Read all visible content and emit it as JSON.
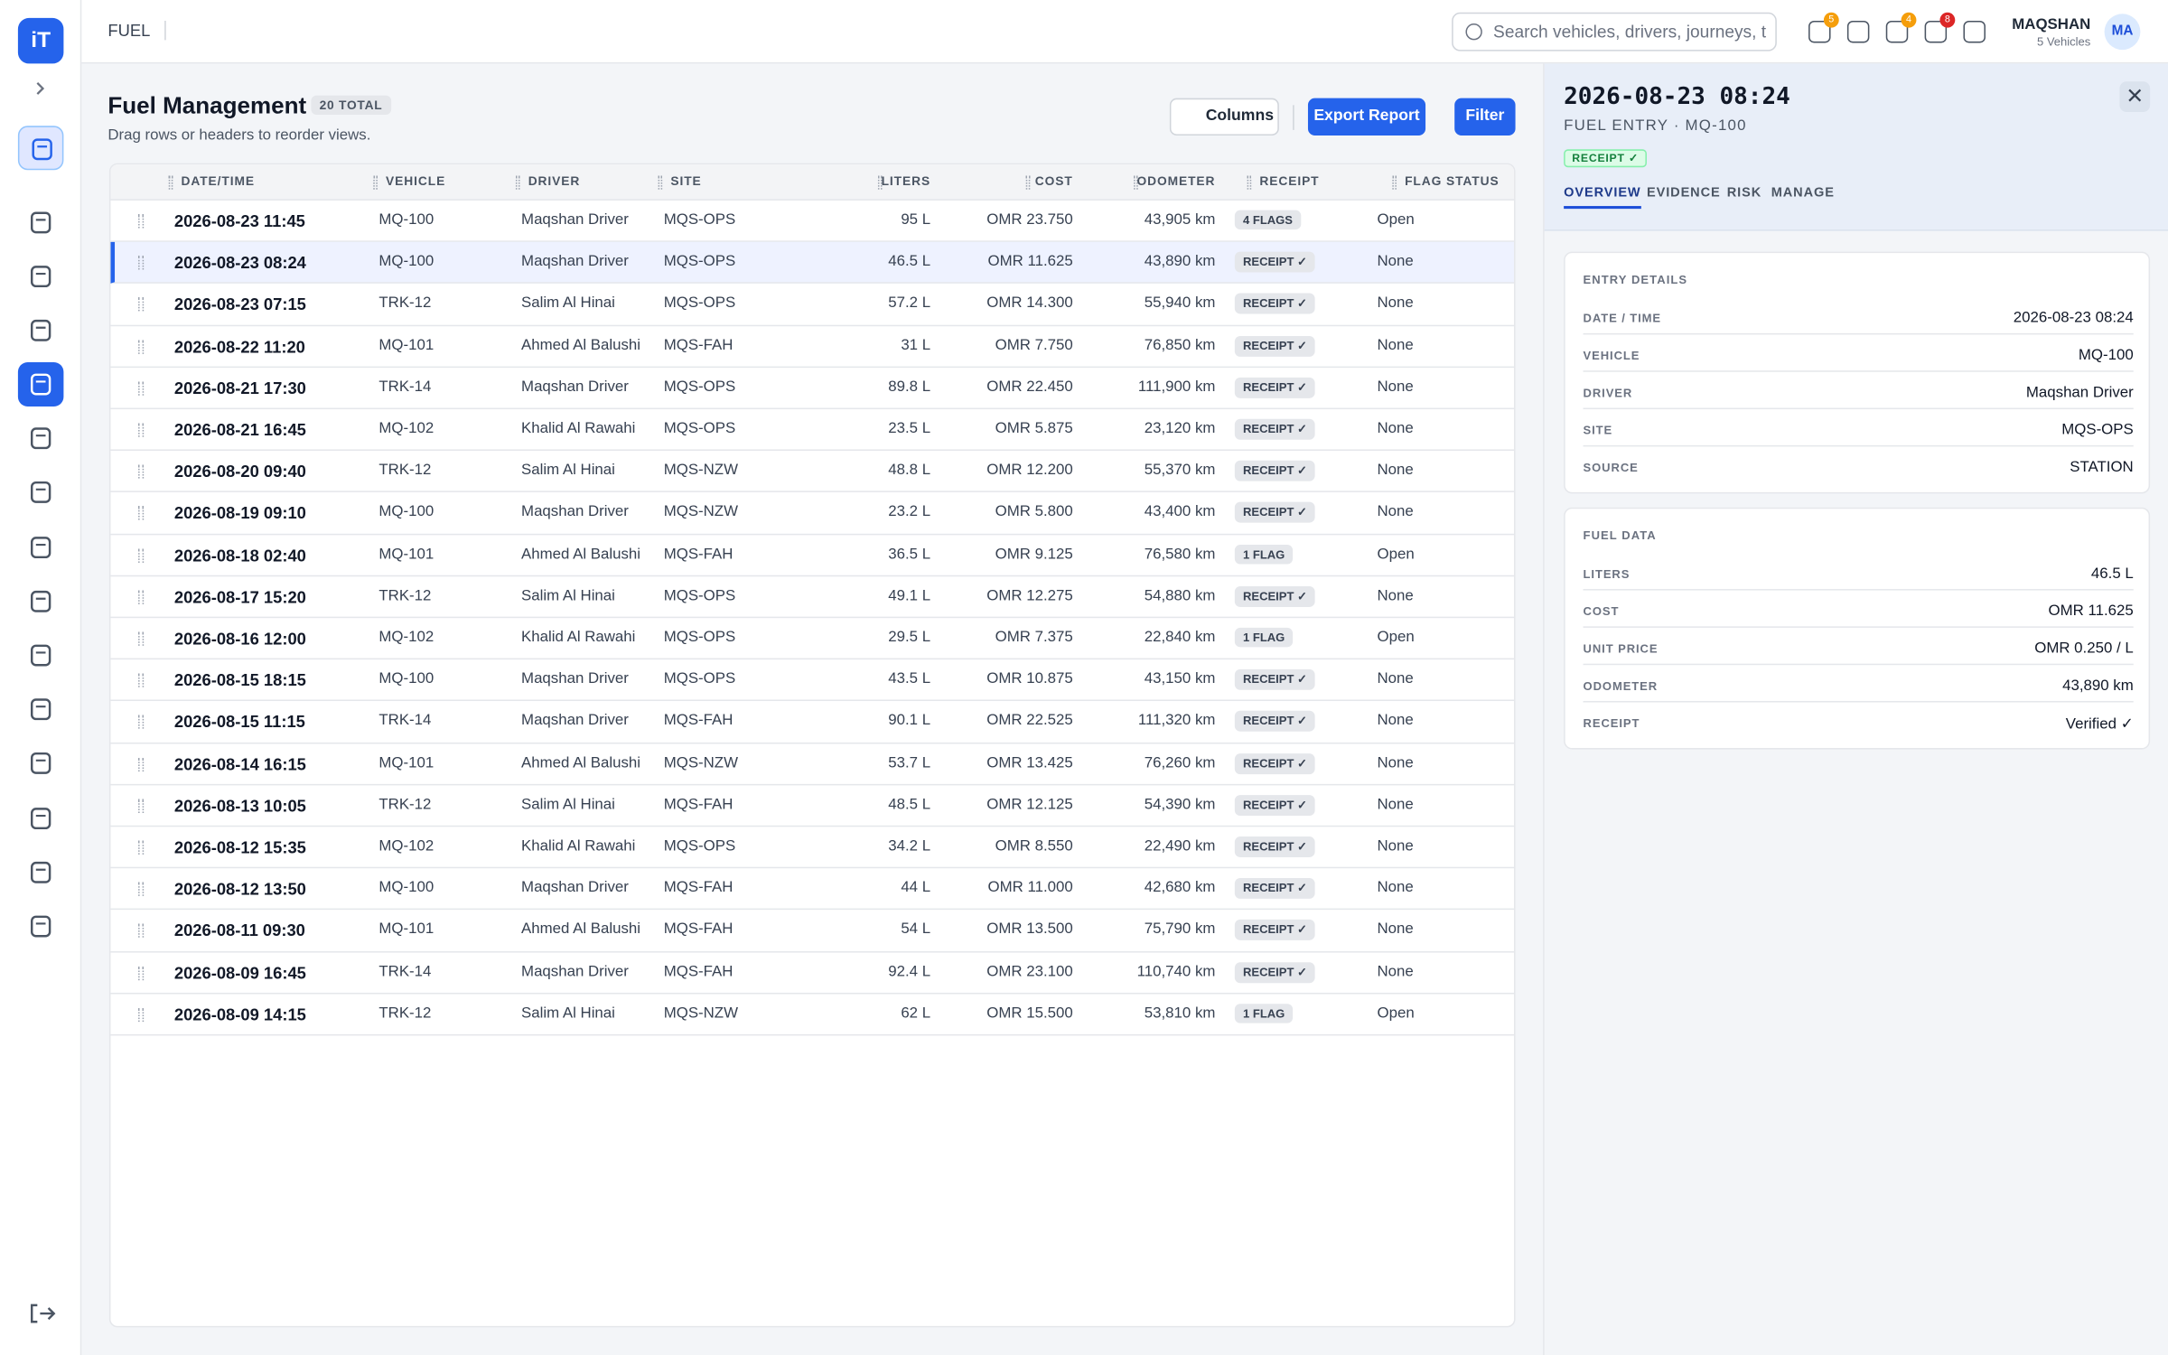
{
  "app": {
    "logo": "iT",
    "section": "FUEL",
    "search_placeholder": "Search vehicles, drivers, journeys, t",
    "notifications": [
      "5",
      "4",
      "8"
    ],
    "user": {
      "name": "MAQSHAN",
      "sub": "5 Vehicles",
      "initials": "MA"
    }
  },
  "page": {
    "title": "Fuel Management",
    "total": "20 TOTAL",
    "hint": "Drag rows or headers to reorder views.",
    "buttons": [
      "Columns",
      "Export Report",
      "Filter"
    ]
  },
  "table": {
    "columns": [
      "DATE/TIME",
      "VEHICLE",
      "DRIVER",
      "SITE",
      "LITERS",
      "COST",
      "ODOMETER",
      "RECEIPT",
      "FLAG STATUS"
    ],
    "rows": [
      [
        "2026-08-23 11:45",
        "MQ-100",
        "Maqshan Driver",
        "MQS-OPS",
        "95 L",
        "OMR 23.750",
        "43,905 km",
        "4 FLAGS",
        "Open"
      ],
      [
        "2026-08-23 08:24",
        "MQ-100",
        "Maqshan Driver",
        "MQS-OPS",
        "46.5 L",
        "OMR 11.625",
        "43,890 km",
        "RECEIPT ✓",
        "None"
      ],
      [
        "2026-08-23 07:15",
        "TRK-12",
        "Salim Al Hinai",
        "MQS-OPS",
        "57.2 L",
        "OMR 14.300",
        "55,940 km",
        "RECEIPT ✓",
        "None"
      ],
      [
        "2026-08-22 11:20",
        "MQ-101",
        "Ahmed Al Balushi",
        "MQS-FAH",
        "31 L",
        "OMR 7.750",
        "76,850 km",
        "RECEIPT ✓",
        "None"
      ],
      [
        "2026-08-21 17:30",
        "TRK-14",
        "Maqshan Driver",
        "MQS-OPS",
        "89.8 L",
        "OMR 22.450",
        "111,900 km",
        "RECEIPT ✓",
        "None"
      ],
      [
        "2026-08-21 16:45",
        "MQ-102",
        "Khalid Al Rawahi",
        "MQS-OPS",
        "23.5 L",
        "OMR 5.875",
        "23,120 km",
        "RECEIPT ✓",
        "None"
      ],
      [
        "2026-08-20 09:40",
        "TRK-12",
        "Salim Al Hinai",
        "MQS-NZW",
        "48.8 L",
        "OMR 12.200",
        "55,370 km",
        "RECEIPT ✓",
        "None"
      ],
      [
        "2026-08-19 09:10",
        "MQ-100",
        "Maqshan Driver",
        "MQS-NZW",
        "23.2 L",
        "OMR 5.800",
        "43,400 km",
        "RECEIPT ✓",
        "None"
      ],
      [
        "2026-08-18 02:40",
        "MQ-101",
        "Ahmed Al Balushi",
        "MQS-FAH",
        "36.5 L",
        "OMR 9.125",
        "76,580 km",
        "1 FLAG",
        "Open"
      ],
      [
        "2026-08-17 15:20",
        "TRK-12",
        "Salim Al Hinai",
        "MQS-OPS",
        "49.1 L",
        "OMR 12.275",
        "54,880 km",
        "RECEIPT ✓",
        "None"
      ],
      [
        "2026-08-16 12:00",
        "MQ-102",
        "Khalid Al Rawahi",
        "MQS-OPS",
        "29.5 L",
        "OMR 7.375",
        "22,840 km",
        "1 FLAG",
        "Open"
      ],
      [
        "2026-08-15 18:15",
        "MQ-100",
        "Maqshan Driver",
        "MQS-OPS",
        "43.5 L",
        "OMR 10.875",
        "43,150 km",
        "RECEIPT ✓",
        "None"
      ],
      [
        "2026-08-15 11:15",
        "TRK-14",
        "Maqshan Driver",
        "MQS-FAH",
        "90.1 L",
        "OMR 22.525",
        "111,320 km",
        "RECEIPT ✓",
        "None"
      ],
      [
        "2026-08-14 16:15",
        "MQ-101",
        "Ahmed Al Balushi",
        "MQS-NZW",
        "53.7 L",
        "OMR 13.425",
        "76,260 km",
        "RECEIPT ✓",
        "None"
      ],
      [
        "2026-08-13 10:05",
        "TRK-12",
        "Salim Al Hinai",
        "MQS-FAH",
        "48.5 L",
        "OMR 12.125",
        "54,390 km",
        "RECEIPT ✓",
        "None"
      ],
      [
        "2026-08-12 15:35",
        "MQ-102",
        "Khalid Al Rawahi",
        "MQS-OPS",
        "34.2 L",
        "OMR 8.550",
        "22,490 km",
        "RECEIPT ✓",
        "None"
      ],
      [
        "2026-08-12 13:50",
        "MQ-100",
        "Maqshan Driver",
        "MQS-FAH",
        "44 L",
        "OMR 11.000",
        "42,680 km",
        "RECEIPT ✓",
        "None"
      ],
      [
        "2026-08-11 09:30",
        "MQ-101",
        "Ahmed Al Balushi",
        "MQS-FAH",
        "54 L",
        "OMR 13.500",
        "75,790 km",
        "RECEIPT ✓",
        "None"
      ],
      [
        "2026-08-09 16:45",
        "TRK-14",
        "Maqshan Driver",
        "MQS-FAH",
        "92.4 L",
        "OMR 23.100",
        "110,740 km",
        "RECEIPT ✓",
        "None"
      ],
      [
        "2026-08-09 14:15",
        "TRK-12",
        "Salim Al Hinai",
        "MQS-NZW",
        "62 L",
        "OMR 15.500",
        "53,810 km",
        "1 FLAG",
        "Open"
      ]
    ]
  },
  "panel": {
    "title": "2026-08-23 08:24",
    "subtitle": "FUEL ENTRY · MQ-100",
    "badge": "RECEIPT ✓",
    "tabs": [
      "OVERVIEW",
      "EVIDENCE",
      "RISK",
      "MANAGE"
    ],
    "sections": [
      {
        "title": "ENTRY DETAILS",
        "rows": [
          [
            "DATE / TIME",
            "2026-08-23 08:24"
          ],
          [
            "VEHICLE",
            "MQ-100"
          ],
          [
            "DRIVER",
            "Maqshan Driver"
          ],
          [
            "SITE",
            "MQS-OPS"
          ],
          [
            "SOURCE",
            "STATION"
          ]
        ]
      },
      {
        "title": "FUEL DATA",
        "rows": [
          [
            "LITERS",
            "46.5 L"
          ],
          [
            "COST",
            "OMR 11.625"
          ],
          [
            "UNIT PRICE",
            "OMR 0.250 / L"
          ],
          [
            "ODOMETER",
            "43,890 km"
          ],
          [
            "RECEIPT",
            "Verified ✓"
          ]
        ]
      }
    ]
  }
}
